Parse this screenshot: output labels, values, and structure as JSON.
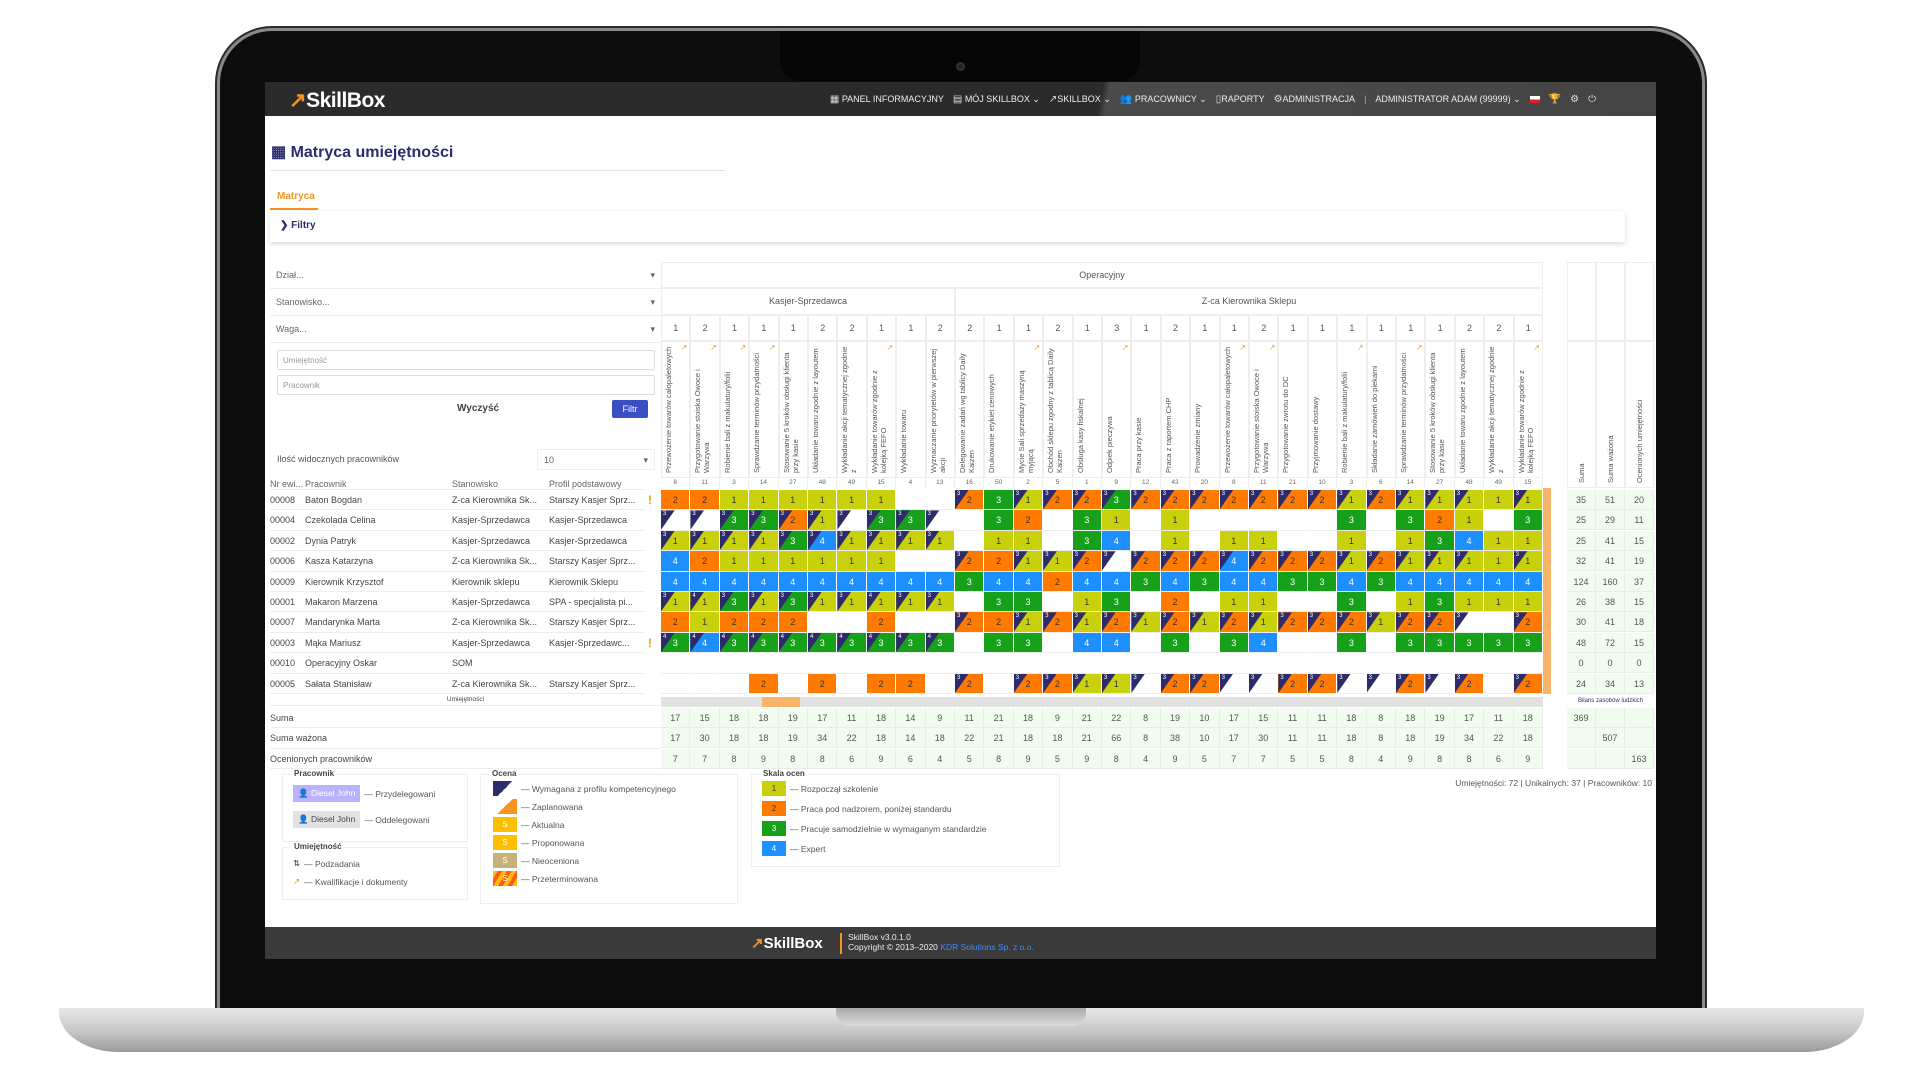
{
  "app": {
    "logo": "SkillBox"
  },
  "nav": {
    "items": [
      "Panel informacyjny",
      "Mój SkillBox",
      "SkillBox",
      "Pracownicy",
      "Raporty",
      "Administracja"
    ],
    "user": "Administrator Adam (99999)"
  },
  "page": {
    "title": "Matryca umiejętności",
    "tab": "Matryca",
    "filters_label": "Filtry"
  },
  "filters": {
    "department": "Dział...",
    "position": "Stanowisko...",
    "weight": "Waga...",
    "skill_placeholder": "Umiejętność",
    "employee_placeholder": "Pracownik",
    "clear": "Wyczyść",
    "filter": "Filtr",
    "visible_label": "Ilość widocznych pracowników",
    "visible_value": "10"
  },
  "table": {
    "headers": [
      "Nr ewi...",
      "Pracownik",
      "Stanowisko",
      "Profil podstawowy"
    ],
    "skills_label": "Umiejętności",
    "group": "Operacyjny",
    "subgroups": [
      {
        "name": "Kasjer-Sprzedawca",
        "span": 10
      },
      {
        "name": "Z-ca Kierownika Sklepu",
        "span": 20
      }
    ],
    "summary_headers": [
      "Suma",
      "Suma ważona",
      "Ocenionych umiejętności"
    ],
    "balance_label": "Bilans zasobów ludzkich",
    "total_labels": [
      "Suma",
      "Suma ważona",
      "Ocenionych pracowników"
    ],
    "stats": "Umiejętności: 72 | Unikalnych: 37 | Pracowników: 10"
  },
  "columns": [
    {
      "name": "Przewożenie towarów całopaletowych",
      "code": "8",
      "weight": 1,
      "qual": true
    },
    {
      "name": "Przygotowanie stoiska Owoce i Warzywa",
      "code": "11",
      "weight": 2,
      "qual": true
    },
    {
      "name": "Robienie bali z makulatury/folii",
      "code": "3",
      "weight": 1,
      "qual": true
    },
    {
      "name": "Sprawdzanie terminów przydatności",
      "code": "14",
      "weight": 1,
      "qual": true
    },
    {
      "name": "Stosowanie 5 kroków obsługi klienta przy kasie",
      "code": "27",
      "weight": 1,
      "qual": false
    },
    {
      "name": "Układanie towaru zgodnie z layoutem",
      "code": "48",
      "weight": 2,
      "qual": false
    },
    {
      "name": "Wykładanie akcji tematycznej zgodnie z",
      "code": "49",
      "weight": 2,
      "qual": false
    },
    {
      "name": "Wykładanie towarów zgodnie z kolejką FEFO",
      "code": "15",
      "weight": 1,
      "qual": true
    },
    {
      "name": "Wykładanie towaru",
      "code": "4",
      "weight": 1,
      "qual": false
    },
    {
      "name": "Wyznaczanie priorytetów w pierwszej akcji",
      "code": "13",
      "weight": 2,
      "qual": false
    },
    {
      "name": "Delegowanie zadań wg tablicy Daily Kaizen",
      "code": "16",
      "weight": 2,
      "qual": false
    },
    {
      "name": "Drukowanie etykiet cenowych",
      "code": "50",
      "weight": 1,
      "qual": false
    },
    {
      "name": "Mycie Sali sprzedaży maszyną myjącą",
      "code": "2",
      "weight": 1,
      "qual": true
    },
    {
      "name": "Obchód sklepu zgodny z tablicą Daily Kaizen",
      "code": "5",
      "weight": 2,
      "qual": false
    },
    {
      "name": "Obsługa kasy fiskalnej",
      "code": "1",
      "weight": 1,
      "qual": false
    },
    {
      "name": "Odpiek pieczywa",
      "code": "9",
      "weight": 3,
      "qual": true
    },
    {
      "name": "Praca przy kasie",
      "code": "12",
      "weight": 1,
      "qual": false
    },
    {
      "name": "Praca z raportem CHP",
      "code": "43",
      "weight": 2,
      "qual": false
    },
    {
      "name": "Prowadzenie zmiany",
      "code": "20",
      "weight": 1,
      "qual": false
    },
    {
      "name": "Przewożenie towarów całopaletowych",
      "code": "8",
      "weight": 1,
      "qual": true
    },
    {
      "name": "Przygotowanie stoiska Owoce i Warzywa",
      "code": "11",
      "weight": 2,
      "qual": true
    },
    {
      "name": "Przygotowanie zwrotu do DC",
      "code": "21",
      "weight": 1,
      "qual": false
    },
    {
      "name": "Przyjmowanie dostawy",
      "code": "10",
      "weight": 1,
      "qual": false
    },
    {
      "name": "Robienie bali z makulatury/folii",
      "code": "3",
      "weight": 1,
      "qual": true
    },
    {
      "name": "Składanie zamówień do piekarni",
      "code": "6",
      "weight": 1,
      "qual": false
    },
    {
      "name": "Sprawdzanie terminów przydatności",
      "code": "14",
      "weight": 1,
      "qual": true
    },
    {
      "name": "Stosowanie 5 kroków obsługi klienta przy kasie",
      "code": "27",
      "weight": 1,
      "qual": false
    },
    {
      "name": "Układanie towaru zgodnie z layoutem",
      "code": "48",
      "weight": 2,
      "qual": false
    },
    {
      "name": "Wykładanie akcji tematycznej zgodnie z",
      "code": "49",
      "weight": 2,
      "qual": false
    },
    {
      "name": "Wykładanie towarów zgodnie z kolejką FEFO",
      "code": "15",
      "weight": 1,
      "qual": true
    }
  ],
  "employees": [
    {
      "id": "00008",
      "name": "Baton Bogdan",
      "position": "Z-ca Kierownika Sk...",
      "profile": "Starszy Kasjer Sprz...",
      "warn": "!",
      "sums": [
        35,
        51,
        20
      ],
      "cells": [
        "2",
        "2",
        "1",
        "1",
        "1",
        "1",
        "1",
        "1",
        "",
        "",
        "3/2",
        "3",
        "3/1",
        "3/2",
        "3/2",
        "3/3",
        "3/2",
        "3/2",
        "3/2",
        "3/2",
        "3/2",
        "3/2",
        "3/2",
        "3/1",
        "3/2",
        "3/1",
        "3/1",
        "3/1",
        "1",
        "3/1"
      ]
    },
    {
      "id": "00004",
      "name": "Czekolada Celina",
      "position": "Kasjer-Sprzedawca",
      "profile": "Kasjer-Sprzedawca",
      "warn": "",
      "sums": [
        25,
        29,
        11
      ],
      "cells": [
        "3/",
        "3/",
        "3/3",
        "3/3",
        "3/2",
        "3/1",
        "3/",
        "3/3",
        "3/3",
        "3/",
        "",
        "3",
        "2",
        "",
        "3",
        "1",
        "",
        "1",
        "",
        "",
        "",
        "",
        "",
        "3",
        "",
        "3",
        "2",
        "1",
        "",
        "3"
      ]
    },
    {
      "id": "00002",
      "name": "Dynia Patryk",
      "position": "Kasjer-Sprzedawca",
      "profile": "Kasjer-Sprzedawca",
      "warn": "",
      "sums": [
        25,
        41,
        15
      ],
      "cells": [
        "3/1",
        "3/1",
        "3/1",
        "3/1",
        "3/3",
        "3/4",
        "3/1",
        "3/1",
        "3/1",
        "3/1",
        "",
        "1",
        "1",
        "",
        "3",
        "4",
        "",
        "1",
        "",
        "1",
        "1",
        "",
        "",
        "1",
        "",
        "1",
        "3",
        "4",
        "1",
        "1"
      ]
    },
    {
      "id": "00006",
      "name": "Kasza Katarzyna",
      "position": "Z-ca Kierownika Sk...",
      "profile": "Starszy Kasjer Sprz...",
      "warn": "",
      "sums": [
        32,
        41,
        19
      ],
      "cells": [
        "4",
        "2",
        "1",
        "1",
        "1",
        "1",
        "1",
        "1",
        "",
        "",
        "3/2",
        "2",
        "3/1",
        "3/1",
        "3/2",
        "3/",
        "3/2",
        "3/2",
        "3/2",
        "3/4",
        "3/2",
        "3/2",
        "3/2",
        "3/1",
        "3/2",
        "3/1",
        "3/1",
        "3/1",
        "1",
        "3/1"
      ]
    },
    {
      "id": "00009",
      "name": "Kierownik Krzysztof",
      "position": "Kierownik sklepu",
      "profile": "Kierownik Sklepu",
      "warn": "",
      "sums": [
        124,
        160,
        37
      ],
      "cells": [
        "4",
        "4",
        "4",
        "4",
        "4",
        "4",
        "4",
        "4",
        "4",
        "4",
        "3",
        "4",
        "4",
        "2",
        "4",
        "4",
        "3",
        "4",
        "3",
        "4",
        "4",
        "3",
        "3",
        "4",
        "3",
        "4",
        "4",
        "4",
        "4",
        "4"
      ]
    },
    {
      "id": "00001",
      "name": "Makaron Marzena",
      "position": "Kasjer-Sprzedawca",
      "profile": "SPA - specjalista pi...",
      "warn": "",
      "sums": [
        26,
        38,
        15
      ],
      "cells": [
        "3/1",
        "4/1",
        "3/3",
        "3/1",
        "3/3",
        "3/1",
        "3/1",
        "4/1",
        "3/1",
        "3/1",
        "",
        "3",
        "3",
        "",
        "1",
        "3",
        "",
        "2",
        "",
        "1",
        "1",
        "",
        "",
        "3",
        "",
        "1",
        "3",
        "1",
        "1",
        "1"
      ]
    },
    {
      "id": "00007",
      "name": "Mandarynka Marta",
      "position": "Z-ca Kierownika Sk...",
      "profile": "Starszy Kasjer Sprz...",
      "warn": "",
      "sums": [
        30,
        41,
        18
      ],
      "cells": [
        "2",
        "1",
        "2",
        "2",
        "2",
        "",
        "",
        "2",
        "",
        "",
        "3/2",
        "2",
        "3/1",
        "3/2",
        "3/1",
        "3/2",
        "3/1",
        "3/2",
        "3/1",
        "3/2",
        "3/1",
        "3/2",
        "3/2",
        "3/2",
        "3/1",
        "3/2",
        "3/2",
        "3/",
        "",
        "3/2"
      ]
    },
    {
      "id": "00003",
      "name": "Mąka Mariusz",
      "position": "Kasjer-Sprzedawca",
      "profile": "Kasjer-Sprzedawc...",
      "warn": "!",
      "sums": [
        48,
        72,
        15
      ],
      "cells": [
        "4/3",
        "4/4",
        "4/3",
        "4/3",
        "4/3",
        "4/3",
        "4/3",
        "4/3",
        "4/3",
        "4/3",
        "",
        "3",
        "3",
        "",
        "4",
        "4",
        "",
        "3",
        "",
        "3",
        "4",
        "",
        "",
        "3",
        "",
        "3",
        "3",
        "3",
        "3",
        "3"
      ]
    },
    {
      "id": "00010",
      "name": "Operacyjny Oskar",
      "position": "SOM",
      "profile": "",
      "warn": "",
      "sums": [
        0,
        0,
        0
      ],
      "cells": [
        "",
        "",
        "",
        "",
        "",
        "",
        "",
        "",
        "",
        "",
        "",
        "",
        "",
        "",
        "",
        "",
        "",
        "",
        "",
        "",
        "",
        "",
        "",
        "",
        "",
        "",
        "",
        "",
        "",
        ""
      ]
    },
    {
      "id": "00005",
      "name": "Sałata Stanisław",
      "position": "Z-ca Kierownika Sk...",
      "profile": "Starszy Kasjer Sprz...",
      "warn": "",
      "sums": [
        24,
        34,
        13
      ],
      "cells": [
        "",
        "",
        "",
        "2",
        "",
        "2",
        "",
        "2",
        "2",
        "",
        "3/2",
        "",
        "3/2",
        "3/2",
        "3/1",
        "3/1",
        "3/",
        "3/2",
        "3/2",
        "3/",
        "3/",
        "3/2",
        "3/2",
        "3/",
        "3/",
        "3/2",
        "3/",
        "3/2",
        "",
        "3/2"
      ]
    }
  ],
  "totals": {
    "suma": [
      17,
      15,
      18,
      18,
      19,
      17,
      11,
      18,
      14,
      9,
      11,
      21,
      18,
      9,
      21,
      22,
      8,
      19,
      10,
      17,
      15,
      11,
      11,
      18,
      8,
      18,
      19,
      17,
      11,
      18
    ],
    "wazona": [
      17,
      30,
      18,
      18,
      19,
      34,
      22,
      18,
      14,
      18,
      22,
      21,
      18,
      18,
      21,
      66,
      8,
      38,
      10,
      17,
      30,
      11,
      11,
      18,
      8,
      18,
      19,
      34,
      22,
      18
    ],
    "ocenionych": [
      7,
      7,
      8,
      9,
      8,
      8,
      6,
      9,
      6,
      4,
      5,
      8,
      9,
      5,
      9,
      8,
      4,
      9,
      5,
      7,
      7,
      5,
      5,
      8,
      4,
      9,
      8,
      8,
      6,
      9
    ],
    "grand": [
      "369",
      "507",
      "163"
    ]
  },
  "legend": {
    "employee": {
      "title": "Pracownik",
      "sample": "Diesel John",
      "items": [
        "— Przydelegowani",
        "— Oddelegowani"
      ]
    },
    "skill": {
      "title": "Umiejętność",
      "items": [
        "— Podzadania",
        "— Kwalifikacje i dokumenty"
      ]
    },
    "rating": {
      "title": "Ocena",
      "items": [
        "— Wymagana z profilu kompetencyjnego",
        "— Zaplanowana",
        "— Aktualna",
        "— Proponowana",
        "— Nieoceniona",
        "— Przeterminowana"
      ],
      "sample": "S"
    },
    "scale": {
      "title": "Skala ocen",
      "items": [
        {
          "v": "1",
          "label": "— Rozpoczął szkolenie"
        },
        {
          "v": "2",
          "label": "— Praca pod nadzorem, poniżej standardu"
        },
        {
          "v": "3",
          "label": "— Pracuje samodzielnie w wymaganym standardzie"
        },
        {
          "v": "4",
          "label": "— Expert"
        }
      ]
    }
  },
  "colors": {
    "1": "#c9d10c",
    "2": "#ff7a00",
    "3": "#17a11b",
    "4": "#1e8fff",
    "required": "#2e2b6b",
    "accent": "#f7931e",
    "primary": "#3b4fc4"
  },
  "footer": {
    "logo": "SkillBox",
    "version": "SkillBox v3.0.1.0",
    "copyright": "Copyright © 2013–2020",
    "company": "KDR Solutions Sp. z o.o."
  }
}
